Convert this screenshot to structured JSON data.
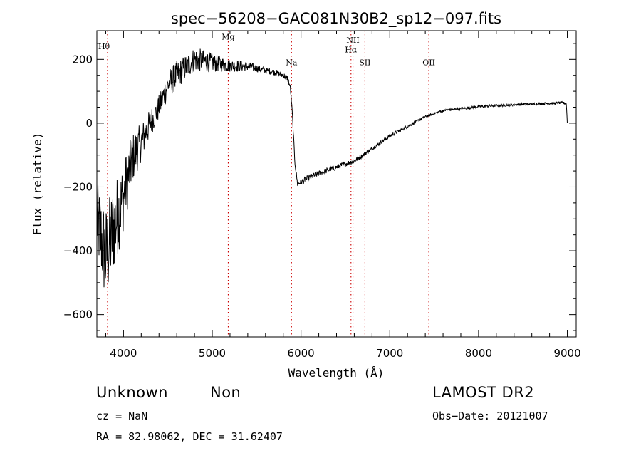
{
  "chart_data": {
    "type": "line",
    "title": "spec−56208−GAC081N30B2_sp12−097.fits",
    "xlabel": "Wavelength (Å)",
    "ylabel": "Flux (relative)",
    "xlim": [
      3700,
      9100
    ],
    "ylim": [
      -670,
      290
    ],
    "x_ticks": [
      4000,
      5000,
      6000,
      7000,
      8000,
      9000
    ],
    "x_tick_labels": [
      "4000",
      "5000",
      "6000",
      "7000",
      "8000",
      "9000"
    ],
    "y_ticks": [
      -600,
      -400,
      -200,
      0,
      200
    ],
    "y_tick_labels": [
      "−600",
      "−400",
      "−200",
      "0",
      "200"
    ],
    "grid": false,
    "series": [
      {
        "x": [
          3700,
          3800,
          3900,
          4000,
          4100,
          4200,
          4300,
          4400,
          4500,
          4600,
          4700,
          4800,
          4900,
          5000,
          5100,
          5200,
          5300,
          5400,
          5500,
          5600,
          5700,
          5800,
          5850,
          5880,
          5900,
          5930,
          5960,
          6000,
          6100,
          6200,
          6300,
          6400,
          6500,
          6600,
          6700,
          6800,
          6900,
          7000,
          7200,
          7400,
          7600,
          7800,
          8000,
          8200,
          8400,
          8600,
          8800,
          8950,
          8990,
          9000
        ],
        "y": [
          -300,
          -420,
          -320,
          -230,
          -110,
          -60,
          0,
          50,
          120,
          150,
          175,
          200,
          195,
          190,
          185,
          180,
          180,
          178,
          172,
          165,
          160,
          150,
          140,
          110,
          40,
          -120,
          -190,
          -185,
          -170,
          -158,
          -148,
          -138,
          -128,
          -118,
          -100,
          -80,
          -60,
          -40,
          -10,
          20,
          40,
          45,
          52,
          55,
          58,
          60,
          62,
          64,
          60,
          0
        ],
        "noise": [
          120,
          160,
          140,
          110,
          80,
          60,
          45,
          40,
          45,
          45,
          40,
          40,
          35,
          30,
          25,
          20,
          18,
          15,
          12,
          10,
          10,
          10,
          10,
          8,
          6,
          8,
          8,
          10,
          10,
          9,
          9,
          9,
          8,
          8,
          7,
          6,
          6,
          6,
          5,
          4,
          4,
          4,
          4,
          4,
          4,
          4,
          4,
          4,
          4,
          0
        ]
      }
    ],
    "lines": [
      {
        "x": 3820,
        "label": "Hθ",
        "label_y": 232
      },
      {
        "x": 5180,
        "label": "Mg",
        "label_y": 262
      },
      {
        "x": 5893,
        "label": "Na",
        "label_y": 182
      },
      {
        "x": 6563,
        "label": "Hα",
        "label_y": 222
      },
      {
        "x": 6585,
        "label": "NII",
        "label_y": 252
      },
      {
        "x": 6720,
        "label": "SII",
        "label_y": 182
      },
      {
        "x": 7440,
        "label": "OII",
        "label_y": 182
      }
    ],
    "line_color": "#cc0000"
  },
  "footer": {
    "class": "Unknown",
    "subclass": "Non",
    "release": "LAMOST DR2",
    "cz": "cz = NaN",
    "obs_date": "Obs−Date: 20121007",
    "coords": "RA =  82.98062, DEC =  31.62407"
  }
}
